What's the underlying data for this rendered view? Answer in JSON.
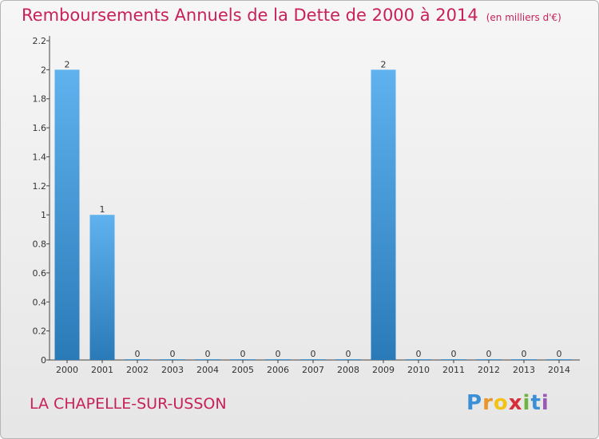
{
  "title": "Remboursements Annuels de la Dette de 2000 à 2014",
  "subtitle": "(en milliers d'€)",
  "commune": "LA CHAPELLE-SUR-USSON",
  "logo": {
    "letters": [
      "P",
      "r",
      "o",
      "x",
      "i",
      "t",
      "i"
    ],
    "colors": [
      "#3a8fd6",
      "#e8952a",
      "#f2c316",
      "#d72f3a",
      "#6fb43f",
      "#3a8fd6",
      "#9a59b5"
    ]
  },
  "colors": {
    "bar_top": "#5fb2ee",
    "bar_bottom": "#2a7ab8",
    "title": "#c8205a"
  },
  "chart_data": {
    "type": "bar",
    "categories": [
      "2000",
      "2001",
      "2002",
      "2003",
      "2004",
      "2005",
      "2006",
      "2007",
      "2008",
      "2009",
      "2010",
      "2011",
      "2012",
      "2013",
      "2014"
    ],
    "values": [
      2,
      1,
      0,
      0,
      0,
      0,
      0,
      0,
      0,
      2,
      0,
      0,
      0,
      0,
      0
    ],
    "data_labels": [
      "2",
      "1",
      "0",
      "0",
      "0",
      "0",
      "0",
      "0",
      "0",
      "2",
      "0",
      "0",
      "0",
      "0",
      "0"
    ],
    "y_ticks": [
      {
        "v": 0,
        "label": "0"
      },
      {
        "v": 0.2,
        "label": "0.2"
      },
      {
        "v": 0.4,
        "label": "0.4"
      },
      {
        "v": 0.6,
        "label": "0.6"
      },
      {
        "v": 0.8,
        "label": "0.8"
      },
      {
        "v": 1,
        "label": "1"
      },
      {
        "v": 1.2,
        "label": "1.2"
      },
      {
        "v": 1.4,
        "label": "1.4"
      },
      {
        "v": 1.6,
        "label": "1.6"
      },
      {
        "v": 1.8,
        "label": "1.8"
      },
      {
        "v": 2,
        "label": "2"
      },
      {
        "v": 2.2,
        "label": "2.2"
      }
    ],
    "ylim": [
      0,
      2.2
    ],
    "title": "Remboursements Annuels de la Dette de 2000 à 2014",
    "xlabel": "",
    "ylabel": "",
    "grid": false
  }
}
